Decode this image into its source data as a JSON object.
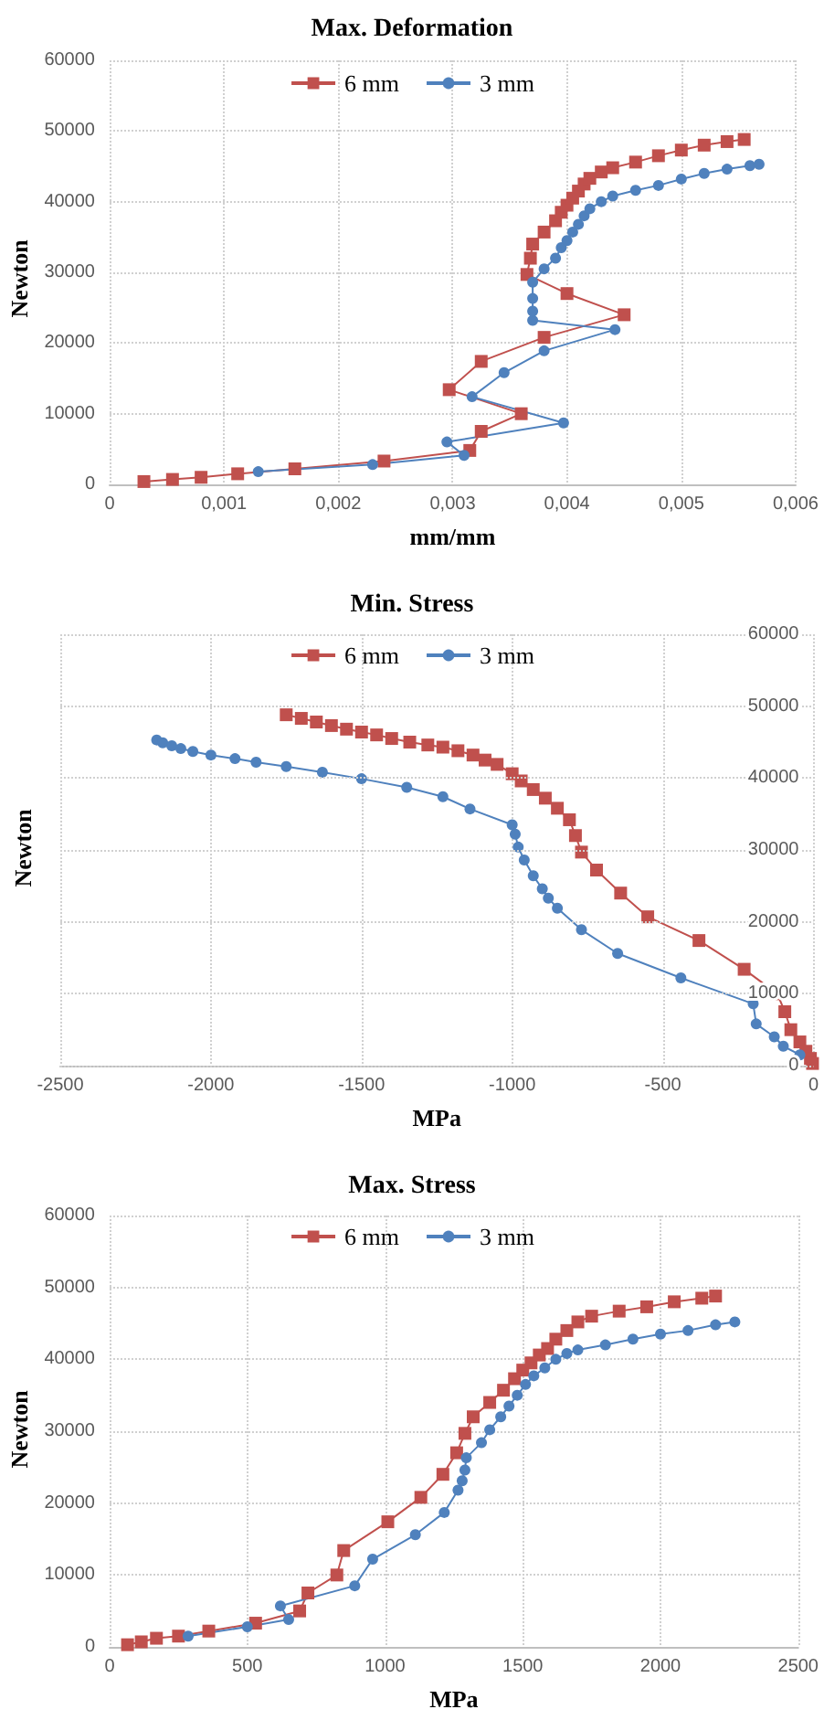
{
  "chart_data": [
    {
      "type": "line",
      "title": "Max. Deformation",
      "xlabel": "mm/mm",
      "ylabel": "Newton",
      "legend": "top",
      "grid": true,
      "xlim": [
        0,
        0.006
      ],
      "xticks": [
        0,
        {
          "value": 0.001,
          "label": "0,001"
        },
        {
          "value": 0.002,
          "label": "0,002"
        },
        {
          "value": 0.003,
          "label": "0,003"
        },
        {
          "value": 0.004,
          "label": "0,004"
        },
        {
          "value": 0.005,
          "label": "0,005"
        },
        {
          "value": 0.006,
          "label": "0,006"
        }
      ],
      "ylim": [
        0,
        60000
      ],
      "yticks": [
        0,
        10000,
        20000,
        30000,
        40000,
        50000,
        60000
      ],
      "series": [
        {
          "name": "6 mm",
          "color": "#c0504d",
          "marker": "square",
          "x": [
            0.0003,
            0.00055,
            0.0008,
            0.00112,
            0.00162,
            0.0024,
            0.00315,
            0.00325,
            0.0036,
            0.00297,
            0.00325,
            0.0038,
            0.0045,
            0.004,
            0.00365,
            0.00368,
            0.0037,
            0.0038,
            0.0039,
            0.00395,
            0.004,
            0.00405,
            0.0041,
            0.00415,
            0.0042,
            0.0043,
            0.0044,
            0.0046,
            0.0048,
            0.005,
            0.0052,
            0.0054,
            0.00555
          ],
          "values": [
            400,
            700,
            1000,
            1500,
            2200,
            3300,
            4800,
            7500,
            10000,
            13400,
            17400,
            20800,
            24000,
            27000,
            29700,
            32000,
            34000,
            35700,
            37300,
            38500,
            39500,
            40500,
            41500,
            42500,
            43300,
            44200,
            44800,
            45600,
            46500,
            47300,
            48000,
            48500,
            48800
          ]
        },
        {
          "name": "3 mm",
          "color": "#4f81bd",
          "marker": "circle",
          "x": [
            0.0013,
            0.0023,
            0.0031,
            0.00295,
            0.00397,
            0.00317,
            0.00345,
            0.0038,
            0.00442,
            0.0037,
            0.0037,
            0.0037,
            0.0037,
            0.0038,
            0.0039,
            0.00395,
            0.004,
            0.00405,
            0.0041,
            0.00415,
            0.0042,
            0.0043,
            0.0044,
            0.0046,
            0.0048,
            0.005,
            0.0052,
            0.0054,
            0.0056,
            0.00568
          ],
          "values": [
            1800,
            2800,
            4100,
            6000,
            8700,
            12400,
            15800,
            18900,
            21900,
            23200,
            24500,
            26300,
            28600,
            30500,
            32000,
            33500,
            34500,
            35700,
            36800,
            38000,
            39000,
            40000,
            40800,
            41600,
            42300,
            43200,
            44000,
            44600,
            45100,
            45300
          ]
        }
      ]
    },
    {
      "type": "line",
      "title": "Min. Stress",
      "xlabel": "MPa",
      "ylabel": "Newton",
      "legend": "top",
      "grid": true,
      "xlim": [
        -2500,
        0
      ],
      "xticks": [
        -2500,
        -2000,
        -1500,
        -1000,
        -500,
        0
      ],
      "y2lim": [
        0,
        60000
      ],
      "y2ticks": [
        0,
        10000,
        20000,
        30000,
        40000,
        50000,
        60000
      ],
      "series": [
        {
          "name": "6 mm",
          "color": "#c0504d",
          "marker": "square",
          "axis": "y2",
          "x": [
            -1750,
            -1700,
            -1650,
            -1600,
            -1550,
            -1500,
            -1450,
            -1400,
            -1340,
            -1280,
            -1230,
            -1180,
            -1130,
            -1090,
            -1050,
            -1000,
            -970,
            -930,
            -890,
            -850,
            -810,
            -790,
            -770,
            -720,
            -640,
            -550,
            -380,
            -230,
            -120,
            -95,
            -75,
            -45,
            -25,
            -10,
            -3
          ],
          "values": [
            48800,
            48300,
            47800,
            47300,
            46800,
            46400,
            46000,
            45500,
            45000,
            44600,
            44300,
            43800,
            43200,
            42500,
            41900,
            40600,
            39600,
            38400,
            37200,
            35800,
            34200,
            32000,
            29700,
            27200,
            24000,
            20700,
            17400,
            13400,
            10000,
            7500,
            5000,
            3300,
            2000,
            1000,
            300
          ]
        },
        {
          "name": "3 mm",
          "color": "#4f81bd",
          "marker": "circle",
          "axis": "y2",
          "x": [
            -2180,
            -2160,
            -2130,
            -2100,
            -2060,
            -2000,
            -1920,
            -1850,
            -1750,
            -1630,
            -1500,
            -1350,
            -1230,
            -1140,
            -1000,
            -990,
            -980,
            -960,
            -930,
            -900,
            -880,
            -850,
            -770,
            -650,
            -440,
            -200,
            -190,
            -130,
            -100,
            -45
          ],
          "values": [
            45300,
            44900,
            44500,
            44100,
            43700,
            43200,
            42700,
            42200,
            41600,
            40800,
            39900,
            38700,
            37400,
            35700,
            33500,
            32200,
            30400,
            28600,
            26400,
            24600,
            23300,
            21900,
            18900,
            15600,
            12200,
            8600,
            5800,
            4000,
            2700,
            1500
          ]
        }
      ]
    },
    {
      "type": "line",
      "title": "Max. Stress",
      "xlabel": "MPa",
      "ylabel": "Newton",
      "legend": "top",
      "grid": true,
      "xlim": [
        0,
        2500
      ],
      "xticks": [
        0,
        500,
        1000,
        1500,
        2000,
        2500
      ],
      "ylim": [
        0,
        60000
      ],
      "yticks": [
        0,
        10000,
        20000,
        30000,
        40000,
        50000,
        60000
      ],
      "series": [
        {
          "name": "6 mm",
          "color": "#c0504d",
          "marker": "square",
          "x": [
            65,
            115,
            170,
            250,
            360,
            530,
            690,
            720,
            825,
            850,
            1010,
            1130,
            1210,
            1260,
            1290,
            1320,
            1380,
            1430,
            1470,
            1500,
            1530,
            1560,
            1590,
            1620,
            1660,
            1700,
            1750,
            1850,
            1950,
            2050,
            2150,
            2200
          ],
          "values": [
            300,
            700,
            1200,
            1500,
            2200,
            3300,
            5000,
            7500,
            10000,
            13400,
            17400,
            20800,
            24000,
            27000,
            29700,
            32000,
            34000,
            35700,
            37300,
            38500,
            39500,
            40600,
            41500,
            42800,
            44000,
            45200,
            46000,
            46700,
            47300,
            48000,
            48500,
            48800
          ]
        },
        {
          "name": "3 mm",
          "color": "#4f81bd",
          "marker": "circle",
          "x": [
            285,
            500,
            650,
            620,
            890,
            955,
            1110,
            1215,
            1265,
            1280,
            1290,
            1295,
            1350,
            1380,
            1420,
            1450,
            1480,
            1510,
            1540,
            1580,
            1620,
            1660,
            1700,
            1800,
            1900,
            2000,
            2100,
            2200,
            2270
          ],
          "values": [
            1500,
            2800,
            3800,
            5700,
            8500,
            12200,
            15600,
            18700,
            21800,
            23100,
            24600,
            26300,
            28400,
            30200,
            32000,
            33500,
            35000,
            36500,
            37700,
            38800,
            40000,
            40800,
            41300,
            42000,
            42800,
            43500,
            44000,
            44800,
            45200
          ]
        }
      ]
    }
  ]
}
